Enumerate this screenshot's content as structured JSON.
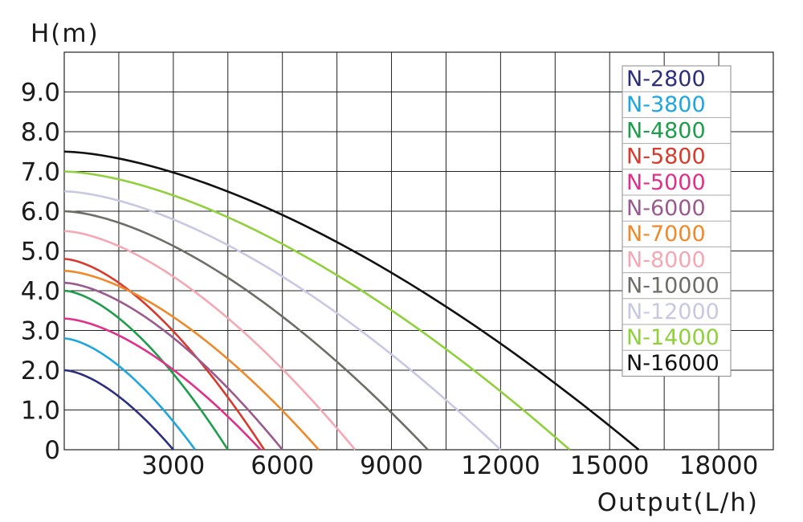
{
  "chart_data": {
    "type": "line",
    "xlabel": "Output(L/h)",
    "ylabel": "H(m)",
    "xlim": [
      0,
      19500
    ],
    "ylim": [
      0,
      10
    ],
    "x_ticks": [
      3000,
      6000,
      9000,
      12000,
      15000,
      18000
    ],
    "x_tick_labels": [
      "3000",
      "6000",
      "9000",
      "12000",
      "15000",
      "18000"
    ],
    "y_ticks": [
      0,
      1,
      2,
      3,
      4,
      5,
      6,
      7,
      8,
      9
    ],
    "y_tick_labels": [
      "0",
      "1.0",
      "2.0",
      "3.0",
      "4.0",
      "5.0",
      "6.0",
      "7.0",
      "8.0",
      "9.0"
    ],
    "grid": true,
    "legend_position": "top-right",
    "series": [
      {
        "name": "N-2800",
        "color": "#2b2f7e",
        "max_head": 2.0,
        "max_flow": 3000
      },
      {
        "name": "N-3800",
        "color": "#1ea6e0",
        "max_head": 2.8,
        "max_flow": 3600
      },
      {
        "name": "N-4800",
        "color": "#1e9e4a",
        "max_head": 4.0,
        "max_flow": 4500
      },
      {
        "name": "N-5800",
        "color": "#d93a2e",
        "max_head": 4.8,
        "max_flow": 5500
      },
      {
        "name": "N-5000",
        "color": "#e0308a",
        "max_head": 3.3,
        "max_flow": 5400
      },
      {
        "name": "N-6000",
        "color": "#9b5a8e",
        "max_head": 4.2,
        "max_flow": 6000
      },
      {
        "name": "N-7000",
        "color": "#f0892a",
        "max_head": 4.5,
        "max_flow": 7000
      },
      {
        "name": "N-8000",
        "color": "#f5a8b3",
        "max_head": 5.5,
        "max_flow": 8000
      },
      {
        "name": "N-10000",
        "color": "#6e6e66",
        "max_head": 6.0,
        "max_flow": 10000
      },
      {
        "name": "N-12000",
        "color": "#c8c8e4",
        "max_head": 6.5,
        "max_flow": 12000
      },
      {
        "name": "N-14000",
        "color": "#8fd13a",
        "max_head": 7.0,
        "max_flow": 13900
      },
      {
        "name": "N-16000",
        "color": "#111111",
        "max_head": 7.5,
        "max_flow": 15800
      }
    ]
  }
}
